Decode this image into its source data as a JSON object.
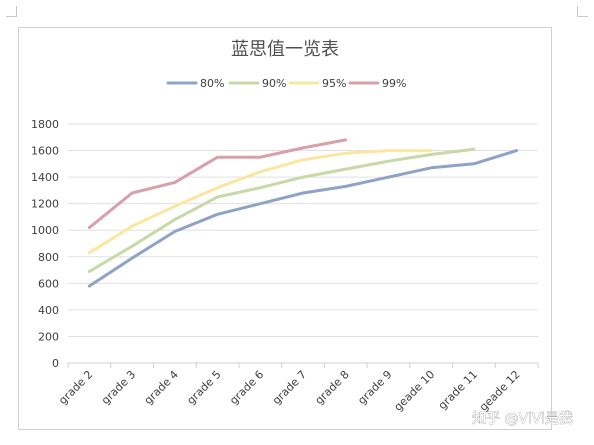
{
  "chart_data": {
    "type": "line",
    "title": "蓝思值一览表",
    "legend_position": "top",
    "grid": true,
    "ylim": [
      0,
      1800
    ],
    "yticks": [
      "0",
      "200",
      "400",
      "600",
      "800",
      "1000",
      "1200",
      "1400",
      "1600",
      "1800"
    ],
    "categories": [
      "grade 2",
      "grade 3",
      "grade 4",
      "grade 5",
      "grade 6",
      "grade 7",
      "grade 8",
      "grade 9",
      "geade 10",
      "grade 11",
      "geade 12"
    ],
    "series": [
      {
        "name": "80%",
        "color": "#8ea3c6",
        "values": [
          580,
          790,
          990,
          1120,
          1200,
          1280,
          1330,
          1400,
          1470,
          1500,
          1600
        ]
      },
      {
        "name": "90%",
        "color": "#c6d9a6",
        "values": [
          690,
          880,
          1080,
          1250,
          1320,
          1400,
          1460,
          1520,
          1570,
          1610,
          null
        ]
      },
      {
        "name": "95%",
        "color": "#fbe6a0",
        "values": [
          830,
          1030,
          1180,
          1320,
          1440,
          1530,
          1580,
          1600,
          1600,
          null,
          null
        ]
      },
      {
        "name": "99%",
        "color": "#d7a0ab",
        "values": [
          1020,
          1280,
          1360,
          1550,
          1550,
          1620,
          1680,
          null,
          null,
          null,
          null
        ]
      }
    ]
  },
  "watermark": "知乎 @ViVi是我"
}
